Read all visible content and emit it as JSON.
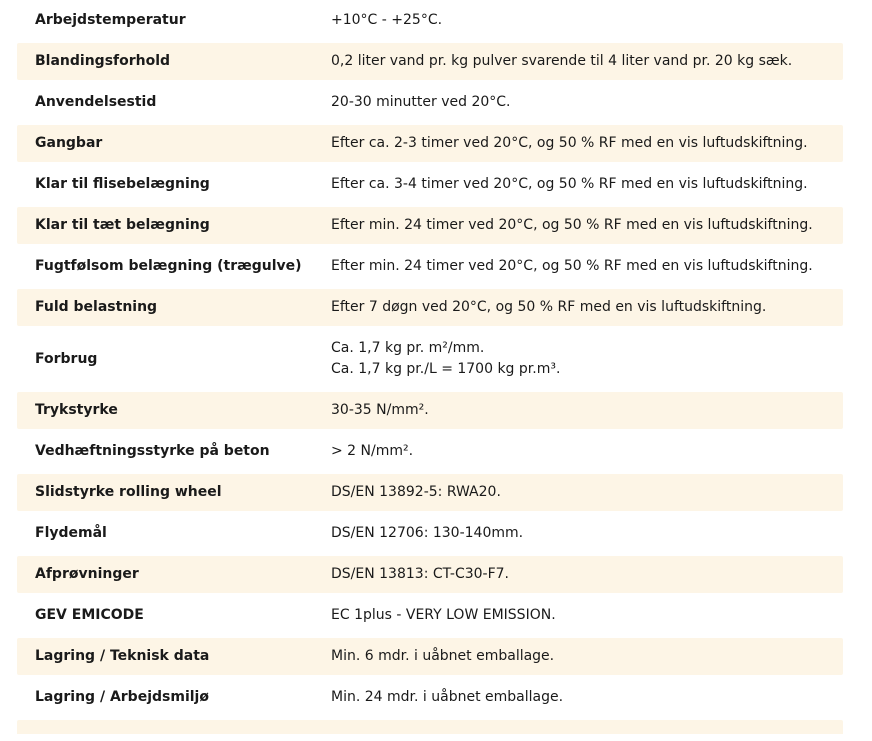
{
  "colors": {
    "row_shade": "#fdf5e6",
    "text": "#1a1a1a",
    "background": "#ffffff"
  },
  "table": {
    "rows": [
      {
        "label": "Arbejdstemperatur",
        "values": [
          "+10°C - +25°C."
        ],
        "shaded": false
      },
      {
        "label": "Blandingsforhold",
        "values": [
          "0,2 liter vand pr. kg pulver svarende til 4 liter vand pr. 20 kg sæk."
        ],
        "shaded": true
      },
      {
        "label": "Anvendelsestid",
        "values": [
          "20-30 minutter ved 20°C."
        ],
        "shaded": false
      },
      {
        "label": "Gangbar",
        "values": [
          "Efter ca. 2-3 timer ved 20°C, og 50 % RF med en vis luftudskiftning."
        ],
        "shaded": true
      },
      {
        "label": "Klar til flisebelægning",
        "values": [
          "Efter ca. 3-4 timer ved 20°C, og 50 % RF med en vis luftudskiftning."
        ],
        "shaded": false
      },
      {
        "label": "Klar til tæt belægning",
        "values": [
          "Efter min. 24 timer ved 20°C, og 50 % RF med en vis luftudskiftning."
        ],
        "shaded": true
      },
      {
        "label": "Fugtfølsom belægning (trægulve)",
        "values": [
          "Efter min. 24 timer ved 20°C, og 50 % RF med en vis luftudskiftning."
        ],
        "shaded": false
      },
      {
        "label": "Fuld belastning",
        "values": [
          "Efter 7 døgn ved 20°C, og 50 % RF med en vis luftudskiftning."
        ],
        "shaded": true
      },
      {
        "label": "Forbrug",
        "values": [
          "Ca. 1,7 kg pr. m²/mm.",
          "Ca. 1,7 kg pr./L = 1700 kg pr.m³."
        ],
        "shaded": false
      },
      {
        "label": "Trykstyrke",
        "values": [
          "30-35 N/mm²."
        ],
        "shaded": true
      },
      {
        "label": "Vedhæftningsstyrke på beton",
        "values": [
          "> 2 N/mm²."
        ],
        "shaded": false
      },
      {
        "label": "Slidstyrke rolling wheel",
        "values": [
          "DS/EN 13892-5: RWA20."
        ],
        "shaded": true
      },
      {
        "label": "Flydemål",
        "values": [
          "DS/EN 12706: 130-140mm."
        ],
        "shaded": false
      },
      {
        "label": "Afprøvninger",
        "values": [
          "DS/EN 13813: CT-C30-F7."
        ],
        "shaded": true
      },
      {
        "label": "GEV EMICODE",
        "values": [
          "EC 1plus - VERY LOW EMISSION."
        ],
        "shaded": false
      },
      {
        "label": "Lagring / Teknisk data",
        "values": [
          "Min. 6 mdr. i uåbnet emballage."
        ],
        "shaded": true
      },
      {
        "label": "Lagring / Arbejdsmiljø",
        "values": [
          "Min. 24 mdr. i uåbnet emballage."
        ],
        "shaded": false
      }
    ],
    "partial_bottom_row": {
      "shaded": true
    }
  }
}
